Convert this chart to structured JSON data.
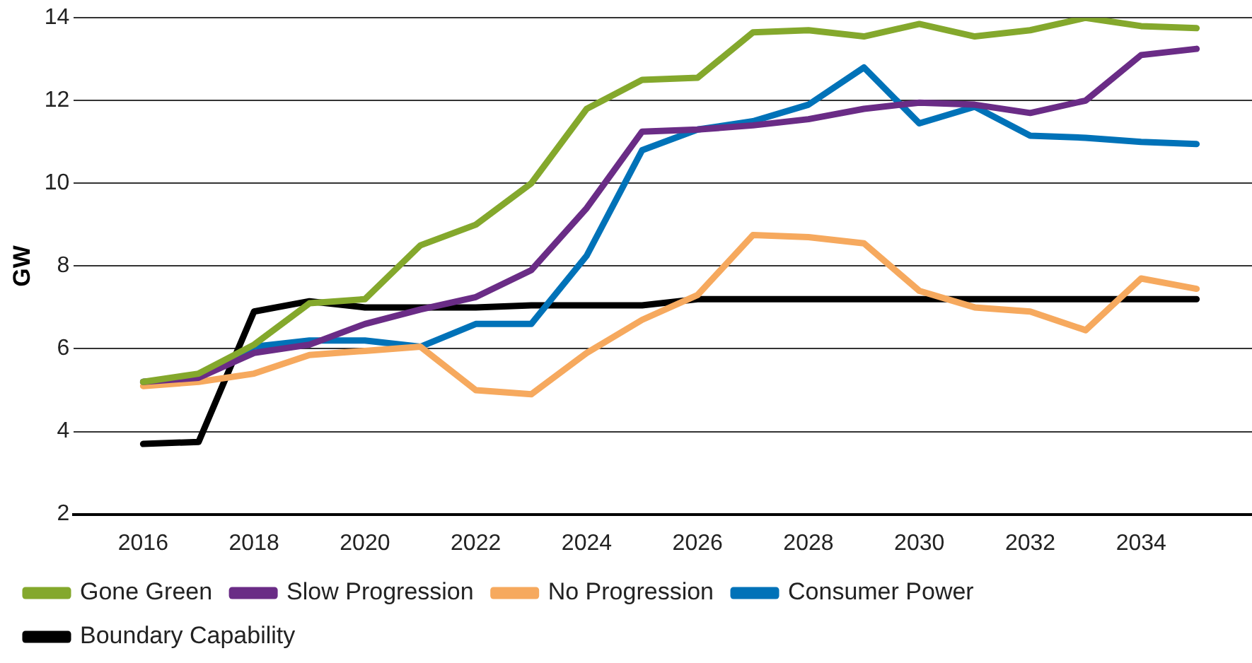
{
  "chart_data": {
    "type": "line",
    "ylabel": "GW",
    "x": [
      2016,
      2017,
      2018,
      2019,
      2020,
      2021,
      2022,
      2023,
      2024,
      2025,
      2026,
      2027,
      2028,
      2029,
      2030,
      2031,
      2032,
      2033,
      2034,
      2035
    ],
    "series": [
      {
        "name": "Gone Green",
        "color": "#84a82c",
        "values": [
          5.2,
          5.4,
          6.1,
          7.1,
          7.2,
          8.5,
          9.0,
          10.0,
          11.8,
          12.5,
          12.55,
          13.65,
          13.7,
          13.55,
          13.85,
          13.55,
          13.7,
          14.0,
          13.8,
          13.75
        ]
      },
      {
        "name": "Slow Progression",
        "color": "#6a2c86",
        "values": [
          5.2,
          5.3,
          5.9,
          6.1,
          6.6,
          6.95,
          7.25,
          7.9,
          9.4,
          11.25,
          11.3,
          11.4,
          11.55,
          11.8,
          11.95,
          11.9,
          11.7,
          12.0,
          13.1,
          13.25
        ]
      },
      {
        "name": "No Progression",
        "color": "#f6a95e",
        "values": [
          5.1,
          5.2,
          5.4,
          5.85,
          5.95,
          6.05,
          5.0,
          4.9,
          5.9,
          6.7,
          7.3,
          8.75,
          8.7,
          8.55,
          7.4,
          7.0,
          6.9,
          6.45,
          7.7,
          7.45
        ]
      },
      {
        "name": "Consumer Power",
        "color": "#0072b8",
        "values": [
          5.2,
          5.3,
          6.05,
          6.2,
          6.2,
          6.05,
          6.6,
          6.6,
          8.25,
          10.8,
          11.3,
          11.5,
          11.9,
          12.8,
          11.45,
          11.85,
          11.15,
          11.1,
          11.0,
          10.95
        ]
      },
      {
        "name": "Boundary Capability",
        "color": "#000000",
        "values": [
          3.7,
          3.75,
          6.9,
          7.15,
          7.0,
          7.0,
          7.0,
          7.05,
          7.05,
          7.05,
          7.2,
          7.2,
          7.2,
          7.2,
          7.2,
          7.2,
          7.2,
          7.2,
          7.2,
          7.2
        ]
      }
    ],
    "xlim": [
      2014.75,
      2036
    ],
    "xticks": [
      2016,
      2018,
      2020,
      2022,
      2024,
      2026,
      2028,
      2030,
      2032,
      2034
    ],
    "ylim": [
      2,
      14
    ],
    "yticks": [
      2,
      4,
      6,
      8,
      10,
      12,
      14
    ],
    "grid": "y",
    "legend": "bottom",
    "marker": "none",
    "line_style": "solid"
  }
}
